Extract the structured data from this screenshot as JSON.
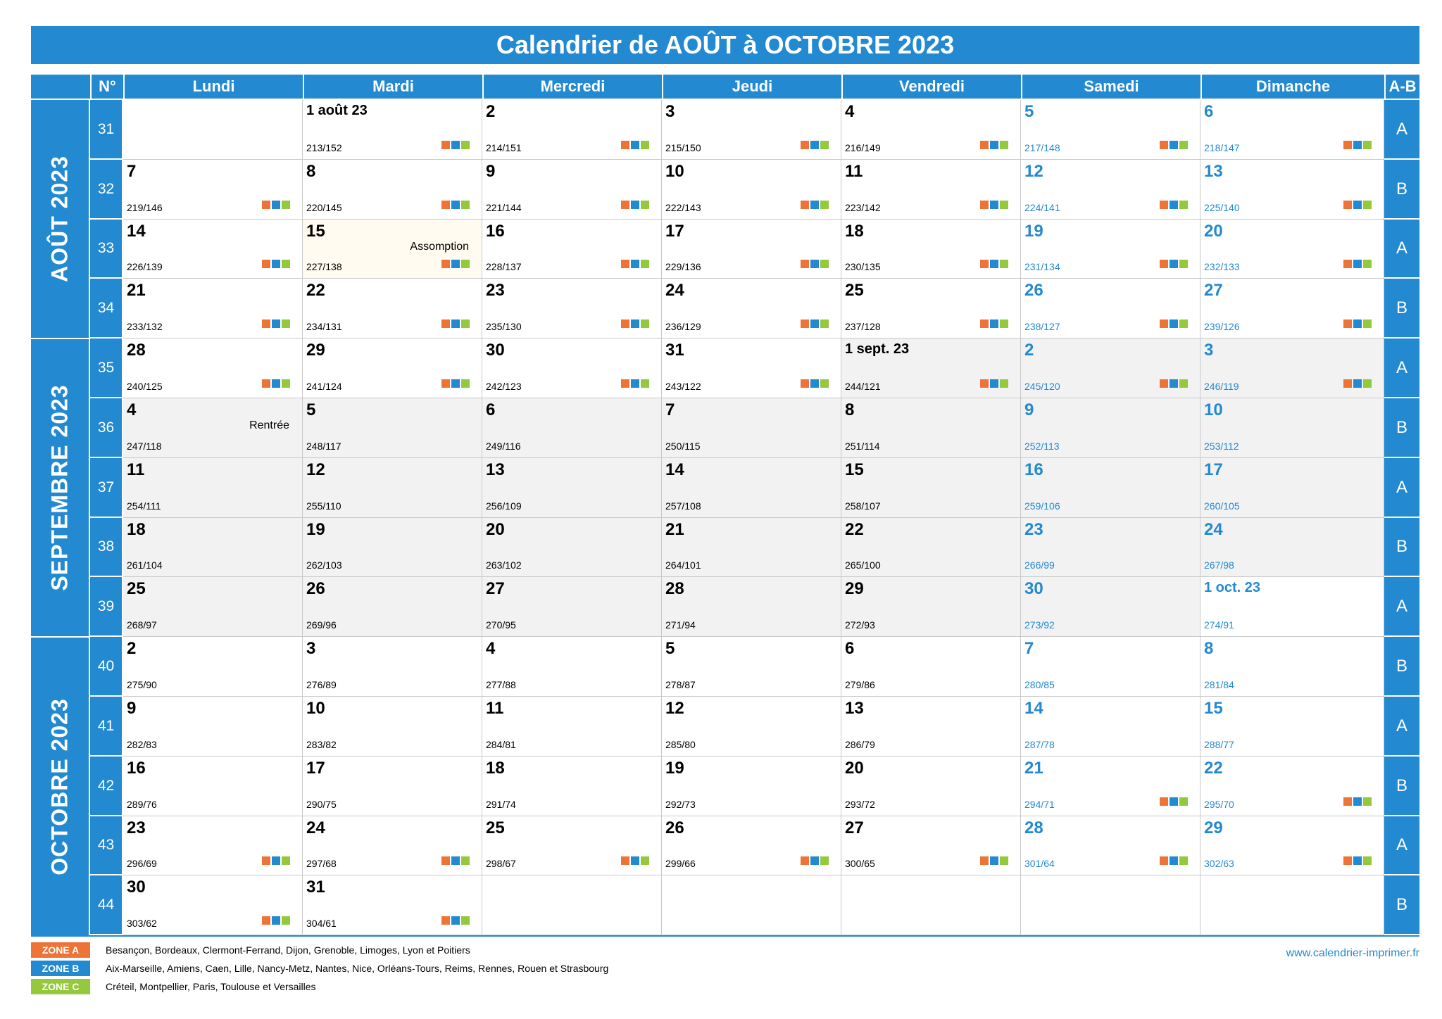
{
  "title": "Calendrier de AOÛT à OCTOBRE 2023",
  "headers": {
    "week": "N°",
    "days": [
      "Lundi",
      "Mardi",
      "Mercredi",
      "Jeudi",
      "Vendredi",
      "Samedi",
      "Dimanche"
    ],
    "ab": "A-B"
  },
  "months": [
    "AOÛT 2023",
    "SEPTEMBRE 2023",
    "OCTOBRE 2023"
  ],
  "weeks": [
    {
      "n": "31",
      "ab": "A",
      "days": [
        null,
        {
          "num": "1 août 23",
          "count": "213/152",
          "zones": true,
          "small": true
        },
        {
          "num": "2",
          "count": "214/151",
          "zones": true
        },
        {
          "num": "3",
          "count": "215/150",
          "zones": true
        },
        {
          "num": "4",
          "count": "216/149",
          "zones": true
        },
        {
          "num": "5",
          "count": "217/148",
          "zones": true
        },
        {
          "num": "6",
          "count": "218/147",
          "zones": true
        }
      ]
    },
    {
      "n": "32",
      "ab": "B",
      "days": [
        {
          "num": "7",
          "count": "219/146",
          "zones": true
        },
        {
          "num": "8",
          "count": "220/145",
          "zones": true
        },
        {
          "num": "9",
          "count": "221/144",
          "zones": true
        },
        {
          "num": "10",
          "count": "222/143",
          "zones": true
        },
        {
          "num": "11",
          "count": "223/142",
          "zones": true
        },
        {
          "num": "12",
          "count": "224/141",
          "zones": true
        },
        {
          "num": "13",
          "count": "225/140",
          "zones": true
        }
      ]
    },
    {
      "n": "33",
      "ab": "A",
      "days": [
        {
          "num": "14",
          "count": "226/139",
          "zones": true
        },
        {
          "num": "15",
          "count": "227/138",
          "zones": true,
          "event": "Assomption",
          "holiday": true
        },
        {
          "num": "16",
          "count": "228/137",
          "zones": true
        },
        {
          "num": "17",
          "count": "229/136",
          "zones": true
        },
        {
          "num": "18",
          "count": "230/135",
          "zones": true
        },
        {
          "num": "19",
          "count": "231/134",
          "zones": true
        },
        {
          "num": "20",
          "count": "232/133",
          "zones": true
        }
      ]
    },
    {
      "n": "34",
      "ab": "B",
      "days": [
        {
          "num": "21",
          "count": "233/132",
          "zones": true
        },
        {
          "num": "22",
          "count": "234/131",
          "zones": true
        },
        {
          "num": "23",
          "count": "235/130",
          "zones": true
        },
        {
          "num": "24",
          "count": "236/129",
          "zones": true
        },
        {
          "num": "25",
          "count": "237/128",
          "zones": true
        },
        {
          "num": "26",
          "count": "238/127",
          "zones": true
        },
        {
          "num": "27",
          "count": "239/126",
          "zones": true
        }
      ]
    },
    {
      "n": "35",
      "ab": "A",
      "days": [
        {
          "num": "28",
          "count": "240/125",
          "zones": true
        },
        {
          "num": "29",
          "count": "241/124",
          "zones": true
        },
        {
          "num": "30",
          "count": "242/123",
          "zones": true
        },
        {
          "num": "31",
          "count": "243/122",
          "zones": true
        },
        {
          "num": "1 sept. 23",
          "count": "244/121",
          "zones": true,
          "small": true,
          "sep": true
        },
        {
          "num": "2",
          "count": "245/120",
          "zones": true,
          "sep": true
        },
        {
          "num": "3",
          "count": "246/119",
          "zones": true,
          "sep": true
        }
      ]
    },
    {
      "n": "36",
      "ab": "B",
      "days": [
        {
          "num": "4",
          "count": "247/118",
          "event": "Rentrée",
          "sep": true
        },
        {
          "num": "5",
          "count": "248/117",
          "sep": true
        },
        {
          "num": "6",
          "count": "249/116",
          "sep": true
        },
        {
          "num": "7",
          "count": "250/115",
          "sep": true
        },
        {
          "num": "8",
          "count": "251/114",
          "sep": true
        },
        {
          "num": "9",
          "count": "252/113",
          "sep": true
        },
        {
          "num": "10",
          "count": "253/112",
          "sep": true
        }
      ]
    },
    {
      "n": "37",
      "ab": "A",
      "days": [
        {
          "num": "11",
          "count": "254/111",
          "sep": true
        },
        {
          "num": "12",
          "count": "255/110",
          "sep": true
        },
        {
          "num": "13",
          "count": "256/109",
          "sep": true
        },
        {
          "num": "14",
          "count": "257/108",
          "sep": true
        },
        {
          "num": "15",
          "count": "258/107",
          "sep": true
        },
        {
          "num": "16",
          "count": "259/106",
          "sep": true
        },
        {
          "num": "17",
          "count": "260/105",
          "sep": true
        }
      ]
    },
    {
      "n": "38",
      "ab": "B",
      "days": [
        {
          "num": "18",
          "count": "261/104",
          "sep": true
        },
        {
          "num": "19",
          "count": "262/103",
          "sep": true
        },
        {
          "num": "20",
          "count": "263/102",
          "sep": true
        },
        {
          "num": "21",
          "count": "264/101",
          "sep": true
        },
        {
          "num": "22",
          "count": "265/100",
          "sep": true
        },
        {
          "num": "23",
          "count": "266/99",
          "sep": true
        },
        {
          "num": "24",
          "count": "267/98",
          "sep": true
        }
      ]
    },
    {
      "n": "39",
      "ab": "A",
      "days": [
        {
          "num": "25",
          "count": "268/97",
          "sep": true
        },
        {
          "num": "26",
          "count": "269/96",
          "sep": true
        },
        {
          "num": "27",
          "count": "270/95",
          "sep": true
        },
        {
          "num": "28",
          "count": "271/94",
          "sep": true
        },
        {
          "num": "29",
          "count": "272/93",
          "sep": true
        },
        {
          "num": "30",
          "count": "273/92",
          "sep": true
        },
        {
          "num": "1 oct. 23",
          "count": "274/91",
          "small": true
        }
      ]
    },
    {
      "n": "40",
      "ab": "B",
      "days": [
        {
          "num": "2",
          "count": "275/90"
        },
        {
          "num": "3",
          "count": "276/89"
        },
        {
          "num": "4",
          "count": "277/88"
        },
        {
          "num": "5",
          "count": "278/87"
        },
        {
          "num": "6",
          "count": "279/86"
        },
        {
          "num": "7",
          "count": "280/85"
        },
        {
          "num": "8",
          "count": "281/84"
        }
      ]
    },
    {
      "n": "41",
      "ab": "A",
      "days": [
        {
          "num": "9",
          "count": "282/83"
        },
        {
          "num": "10",
          "count": "283/82"
        },
        {
          "num": "11",
          "count": "284/81"
        },
        {
          "num": "12",
          "count": "285/80"
        },
        {
          "num": "13",
          "count": "286/79"
        },
        {
          "num": "14",
          "count": "287/78"
        },
        {
          "num": "15",
          "count": "288/77"
        }
      ]
    },
    {
      "n": "42",
      "ab": "B",
      "days": [
        {
          "num": "16",
          "count": "289/76"
        },
        {
          "num": "17",
          "count": "290/75"
        },
        {
          "num": "18",
          "count": "291/74"
        },
        {
          "num": "19",
          "count": "292/73"
        },
        {
          "num": "20",
          "count": "293/72"
        },
        {
          "num": "21",
          "count": "294/71",
          "zones": true
        },
        {
          "num": "22",
          "count": "295/70",
          "zones": true
        }
      ]
    },
    {
      "n": "43",
      "ab": "A",
      "days": [
        {
          "num": "23",
          "count": "296/69",
          "zones": true
        },
        {
          "num": "24",
          "count": "297/68",
          "zones": true
        },
        {
          "num": "25",
          "count": "298/67",
          "zones": true
        },
        {
          "num": "26",
          "count": "299/66",
          "zones": true
        },
        {
          "num": "27",
          "count": "300/65",
          "zones": true
        },
        {
          "num": "28",
          "count": "301/64",
          "zones": true
        },
        {
          "num": "29",
          "count": "302/63",
          "zones": true
        }
      ]
    },
    {
      "n": "44",
      "ab": "B",
      "days": [
        {
          "num": "30",
          "count": "303/62",
          "zones": true
        },
        {
          "num": "31",
          "count": "304/61",
          "zones": true
        },
        null,
        null,
        null,
        null,
        null
      ]
    }
  ],
  "legend": [
    {
      "zone": "ZONE A",
      "color": "#ee7336",
      "text": "Besançon, Bordeaux, Clermont-Ferrand, Dijon, Grenoble, Limoges, Lyon et Poitiers"
    },
    {
      "zone": "ZONE B",
      "color": "#2389d0",
      "text": "Aix-Marseille, Amiens, Caen, Lille, Nancy-Metz, Nantes, Nice, Orléans-Tours, Reims, Rennes, Rouen et Strasbourg"
    },
    {
      "zone": "ZONE C",
      "color": "#94c83d",
      "text": "Créteil, Montpellier, Paris, Toulouse et Versailles"
    }
  ],
  "website": "www.calendrier-imprimer.fr",
  "colors": {
    "accent": "#2389d0",
    "zone_a": "#ee7336",
    "zone_b": "#2389d0",
    "zone_c": "#94c83d"
  }
}
